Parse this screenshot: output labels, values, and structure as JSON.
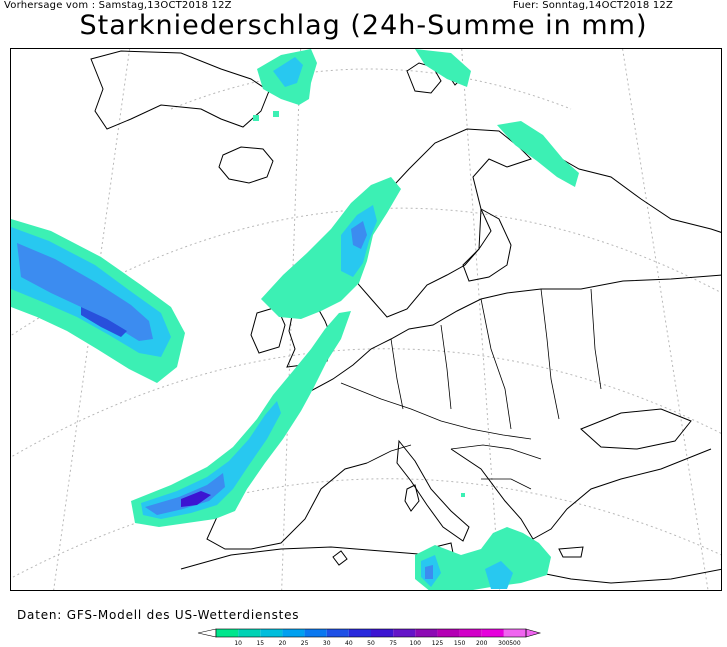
{
  "header": {
    "forecast_from": "Vorhersage vom : Samstag,13OCT2018 12Z",
    "valid_for": "Fuer: Sonntag,14OCT2018 12Z"
  },
  "title": "Starkniederschlag (24h-Summe in mm)",
  "source": "Daten: GFS-Modell des US-Wetterdienstes",
  "legend": {
    "levels": [
      "10",
      "15",
      "20",
      "25",
      "30",
      "40",
      "50",
      "75",
      "100",
      "125",
      "150",
      "200",
      "300",
      "500"
    ],
    "colors": [
      "#00e68c",
      "#00d2b4",
      "#00bedc",
      "#00a0f0",
      "#0a78f0",
      "#1e50e6",
      "#2828dc",
      "#3c14d2",
      "#6414c8",
      "#8c0ab4",
      "#b400b4",
      "#d200c8",
      "#e600dc",
      "#f064f0"
    ]
  },
  "map": {
    "precip_colors": {
      "light": "#3cf0b4",
      "medium": "#28c8f0",
      "heavy": "#3c8cf0",
      "very_heavy": "#2850dc",
      "extreme": "#3c14d2"
    }
  }
}
